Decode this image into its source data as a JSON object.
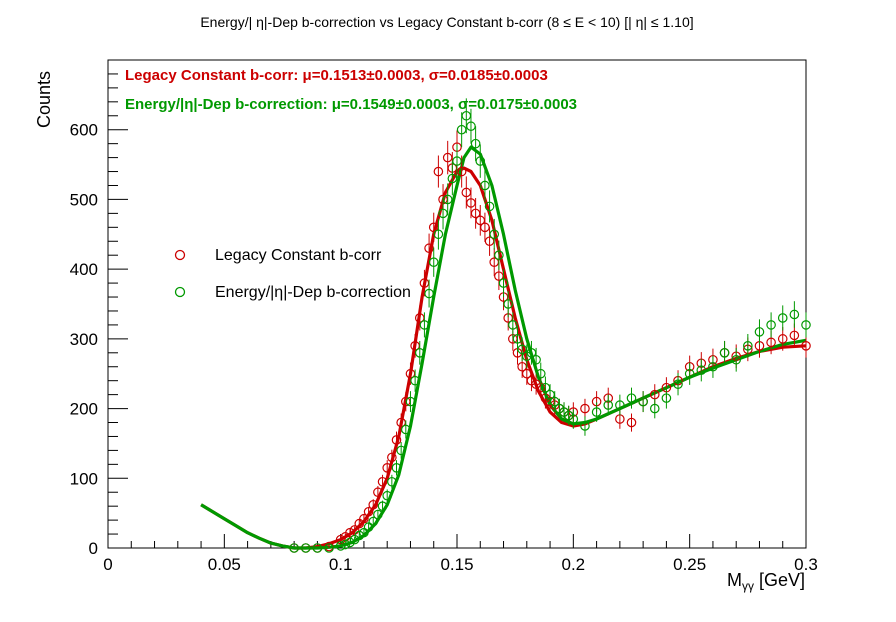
{
  "chart_data": {
    "type": "scatter",
    "title": "Energy/| η|-Dep b-correction vs Legacy Constant b-corr   (8      ≤ E < 10)   [| η| ≤ 1.10]",
    "xlabel": "M_γγ [GeV]",
    "xlabel_main": "M",
    "xlabel_sub": "γγ",
    "xlabel_unit": " [GeV]",
    "ylabel": "Counts",
    "xlim": [
      0,
      0.3
    ],
    "ylim": [
      0,
      700
    ],
    "x_ticks": [
      0,
      0.05,
      0.1,
      0.15,
      0.2,
      0.25,
      0.3
    ],
    "x_tick_labels": [
      "0",
      "0.05",
      "0.1",
      "0.15",
      "0.2",
      "0.25",
      "0.3"
    ],
    "y_ticks": [
      0,
      100,
      200,
      300,
      400,
      500,
      600
    ],
    "y_tick_labels": [
      "0",
      "100",
      "200",
      "300",
      "400",
      "500",
      "600"
    ],
    "legend_position": "center-left",
    "fit_annotations": [
      {
        "text": "Legacy Constant b-corr: μ=0.1513±0.0003,  σ=0.0185±0.0003",
        "color": "#cc0000"
      },
      {
        "text": "Energy/|η|-Dep b-correction: μ=0.1549±0.0003,  σ=0.0175±0.0003",
        "color": "#009900"
      }
    ],
    "series": [
      {
        "name": "Legacy Constant b-corr",
        "color": "#cc0000",
        "x": [
          0.08,
          0.085,
          0.09,
          0.095,
          0.1,
          0.102,
          0.104,
          0.106,
          0.108,
          0.11,
          0.112,
          0.114,
          0.116,
          0.118,
          0.12,
          0.122,
          0.124,
          0.126,
          0.128,
          0.13,
          0.132,
          0.134,
          0.136,
          0.138,
          0.14,
          0.142,
          0.144,
          0.146,
          0.148,
          0.15,
          0.152,
          0.154,
          0.156,
          0.158,
          0.16,
          0.162,
          0.164,
          0.166,
          0.168,
          0.17,
          0.172,
          0.174,
          0.176,
          0.178,
          0.18,
          0.182,
          0.184,
          0.186,
          0.188,
          0.19,
          0.192,
          0.194,
          0.196,
          0.198,
          0.2,
          0.205,
          0.21,
          0.215,
          0.22,
          0.225,
          0.23,
          0.235,
          0.24,
          0.245,
          0.25,
          0.255,
          0.26,
          0.265,
          0.27,
          0.275,
          0.28,
          0.285,
          0.29,
          0.295,
          0.3
        ],
        "y": [
          0,
          0,
          0,
          2,
          12,
          16,
          22,
          26,
          35,
          42,
          52,
          62,
          80,
          95,
          115,
          130,
          155,
          180,
          210,
          250,
          290,
          330,
          380,
          430,
          460,
          540,
          500,
          560,
          545,
          575,
          540,
          510,
          495,
          480,
          470,
          460,
          440,
          410,
          390,
          360,
          330,
          300,
          280,
          260,
          250,
          240,
          235,
          230,
          215,
          210,
          205,
          200,
          195,
          190,
          195,
          200,
          210,
          215,
          185,
          180,
          210,
          220,
          230,
          240,
          260,
          265,
          270,
          280,
          275,
          285,
          290,
          295,
          300,
          305,
          290
        ],
        "yerr": [
          0,
          0,
          0,
          3,
          4,
          4,
          5,
          5,
          6,
          6,
          7,
          8,
          9,
          10,
          11,
          11,
          12,
          13,
          14,
          16,
          17,
          18,
          19,
          21,
          21,
          23,
          22,
          24,
          23,
          24,
          23,
          23,
          22,
          22,
          22,
          21,
          21,
          20,
          20,
          19,
          18,
          17,
          17,
          16,
          16,
          15,
          15,
          15,
          15,
          14,
          14,
          14,
          14,
          14,
          14,
          14,
          15,
          15,
          14,
          13,
          15,
          15,
          15,
          15,
          16,
          16,
          16,
          17,
          17,
          17,
          17,
          17,
          17,
          17,
          17
        ]
      },
      {
        "name": "Energy/|η|-Dep b-correction",
        "color": "#009900",
        "x": [
          0.08,
          0.085,
          0.09,
          0.095,
          0.1,
          0.102,
          0.104,
          0.106,
          0.108,
          0.11,
          0.112,
          0.114,
          0.116,
          0.118,
          0.12,
          0.122,
          0.124,
          0.126,
          0.128,
          0.13,
          0.132,
          0.134,
          0.136,
          0.138,
          0.14,
          0.142,
          0.144,
          0.146,
          0.148,
          0.15,
          0.152,
          0.154,
          0.156,
          0.158,
          0.16,
          0.162,
          0.164,
          0.166,
          0.168,
          0.17,
          0.172,
          0.174,
          0.176,
          0.178,
          0.18,
          0.182,
          0.184,
          0.186,
          0.188,
          0.19,
          0.192,
          0.194,
          0.196,
          0.198,
          0.2,
          0.205,
          0.21,
          0.215,
          0.22,
          0.225,
          0.23,
          0.235,
          0.24,
          0.245,
          0.25,
          0.255,
          0.26,
          0.265,
          0.27,
          0.275,
          0.28,
          0.285,
          0.29,
          0.295,
          0.3
        ],
        "y": [
          0,
          0,
          0,
          0,
          3,
          5,
          8,
          12,
          18,
          22,
          30,
          38,
          48,
          60,
          75,
          95,
          115,
          140,
          170,
          210,
          240,
          280,
          320,
          365,
          410,
          450,
          480,
          500,
          530,
          555,
          600,
          620,
          605,
          580,
          555,
          520,
          490,
          450,
          420,
          380,
          350,
          320,
          300,
          285,
          275,
          280,
          270,
          250,
          230,
          220,
          210,
          200,
          195,
          190,
          185,
          175,
          195,
          205,
          205,
          215,
          210,
          200,
          215,
          235,
          250,
          255,
          260,
          280,
          270,
          290,
          310,
          320,
          330,
          335,
          320
        ],
        "yerr": [
          0,
          0,
          0,
          0,
          2,
          3,
          3,
          4,
          5,
          5,
          6,
          7,
          7,
          8,
          9,
          10,
          11,
          12,
          13,
          15,
          16,
          17,
          18,
          20,
          21,
          22,
          23,
          23,
          24,
          24,
          25,
          25,
          25,
          25,
          24,
          24,
          23,
          22,
          21,
          20,
          19,
          18,
          18,
          17,
          17,
          17,
          17,
          16,
          16,
          15,
          15,
          14,
          14,
          14,
          14,
          14,
          14,
          15,
          15,
          15,
          15,
          14,
          15,
          16,
          16,
          16,
          16,
          17,
          17,
          17,
          18,
          18,
          18,
          19,
          18
        ]
      }
    ],
    "fit_curves": [
      {
        "name": "Legacy Constant b-corr fit",
        "color": "#cc0000",
        "x": [
          0.04,
          0.045,
          0.05,
          0.055,
          0.06,
          0.065,
          0.07,
          0.075,
          0.08,
          0.085,
          0.09,
          0.095,
          0.1,
          0.105,
          0.11,
          0.115,
          0.12,
          0.125,
          0.13,
          0.135,
          0.14,
          0.145,
          0.15,
          0.153,
          0.156,
          0.16,
          0.165,
          0.17,
          0.175,
          0.18,
          0.185,
          0.19,
          0.195,
          0.2,
          0.205,
          0.21,
          0.22,
          0.23,
          0.24,
          0.25,
          0.26,
          0.27,
          0.28,
          0.29,
          0.3
        ],
        "y": [
          62,
          52,
          42,
          32,
          22,
          14,
          7,
          3,
          0,
          0,
          2,
          6,
          12,
          22,
          38,
          62,
          100,
          160,
          250,
          360,
          450,
          510,
          540,
          545,
          540,
          520,
          470,
          400,
          330,
          270,
          225,
          195,
          180,
          175,
          178,
          185,
          200,
          215,
          230,
          245,
          260,
          272,
          282,
          288,
          290
        ]
      },
      {
        "name": "Energy/|η|-Dep b-correction fit",
        "color": "#009900",
        "x": [
          0.04,
          0.045,
          0.05,
          0.055,
          0.06,
          0.065,
          0.07,
          0.075,
          0.08,
          0.085,
          0.09,
          0.095,
          0.1,
          0.105,
          0.11,
          0.115,
          0.12,
          0.125,
          0.13,
          0.135,
          0.14,
          0.145,
          0.15,
          0.153,
          0.156,
          0.16,
          0.165,
          0.17,
          0.175,
          0.18,
          0.185,
          0.19,
          0.195,
          0.2,
          0.205,
          0.21,
          0.22,
          0.23,
          0.24,
          0.25,
          0.26,
          0.27,
          0.28,
          0.29,
          0.3
        ],
        "y": [
          62,
          52,
          42,
          32,
          22,
          14,
          7,
          3,
          0,
          0,
          0,
          1,
          3,
          8,
          18,
          35,
          62,
          105,
          175,
          265,
          360,
          450,
          520,
          560,
          575,
          565,
          520,
          450,
          370,
          300,
          245,
          205,
          185,
          178,
          180,
          185,
          200,
          215,
          230,
          245,
          258,
          270,
          282,
          292,
          298
        ]
      }
    ]
  }
}
